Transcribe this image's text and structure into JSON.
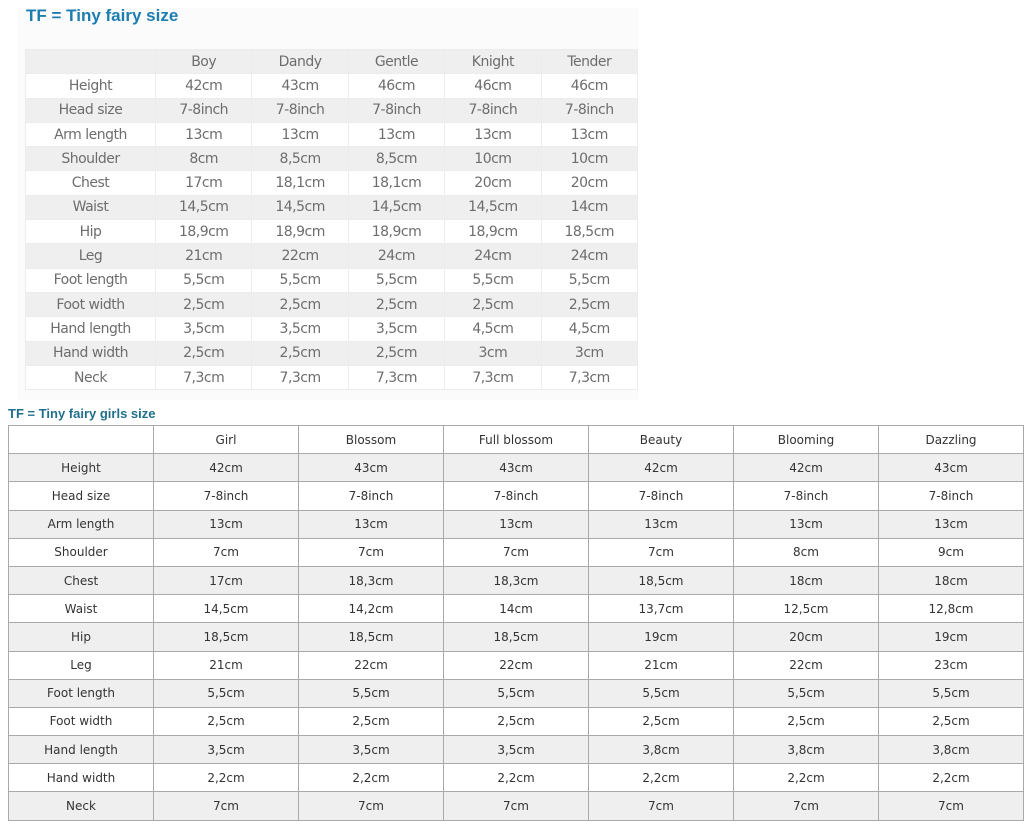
{
  "boys": {
    "title": "TF = Tiny fairy size",
    "columns": [
      "",
      "Boy",
      "Dandy",
      "Gentle",
      "Knight",
      "Tender"
    ],
    "rows": [
      [
        "Height",
        "42cm",
        "43cm",
        "46cm",
        "46cm",
        "46cm"
      ],
      [
        "Head size",
        "7-8inch",
        "7-8inch",
        "7-8inch",
        "7-8inch",
        "7-8inch"
      ],
      [
        "Arm length",
        "13cm",
        "13cm",
        "13cm",
        "13cm",
        "13cm"
      ],
      [
        "Shoulder",
        "8cm",
        "8,5cm",
        "8,5cm",
        "10cm",
        "10cm"
      ],
      [
        "Chest",
        "17cm",
        "18,1cm",
        "18,1cm",
        "20cm",
        "20cm"
      ],
      [
        "Waist",
        "14,5cm",
        "14,5cm",
        "14,5cm",
        "14,5cm",
        "14cm"
      ],
      [
        "Hip",
        "18,9cm",
        "18,9cm",
        "18,9cm",
        "18,9cm",
        "18,5cm"
      ],
      [
        "Leg",
        "21cm",
        "22cm",
        "24cm",
        "24cm",
        "24cm"
      ],
      [
        "Foot length",
        "5,5cm",
        "5,5cm",
        "5,5cm",
        "5,5cm",
        "5,5cm"
      ],
      [
        "Foot width",
        "2,5cm",
        "2,5cm",
        "2,5cm",
        "2,5cm",
        "2,5cm"
      ],
      [
        "Hand length",
        "3,5cm",
        "3,5cm",
        "3,5cm",
        "4,5cm",
        "4,5cm"
      ],
      [
        "Hand width",
        "2,5cm",
        "2,5cm",
        "2,5cm",
        "3cm",
        "3cm"
      ],
      [
        "Neck",
        "7,3cm",
        "7,3cm",
        "7,3cm",
        "7,3cm",
        "7,3cm"
      ]
    ]
  },
  "girls": {
    "title": "TF = Tiny fairy girls size",
    "columns": [
      "",
      "Girl",
      "Blossom",
      "Full blossom",
      "Beauty",
      "Blooming",
      "Dazzling"
    ],
    "rows": [
      [
        "Height",
        "42cm",
        "43cm",
        "43cm",
        "42cm",
        "42cm",
        "43cm"
      ],
      [
        "Head size",
        "7-8inch",
        "7-8inch",
        "7-8inch",
        "7-8inch",
        "7-8inch",
        "7-8inch"
      ],
      [
        "Arm length",
        "13cm",
        "13cm",
        "13cm",
        "13cm",
        "13cm",
        "13cm"
      ],
      [
        "Shoulder",
        "7cm",
        "7cm",
        "7cm",
        "7cm",
        "8cm",
        "9cm"
      ],
      [
        "Chest",
        "17cm",
        "18,3cm",
        "18,3cm",
        "18,5cm",
        "18cm",
        "18cm"
      ],
      [
        "Waist",
        "14,5cm",
        "14,2cm",
        "14cm",
        "13,7cm",
        "12,5cm",
        "12,8cm"
      ],
      [
        "Hip",
        "18,5cm",
        "18,5cm",
        "18,5cm",
        "19cm",
        "20cm",
        "19cm"
      ],
      [
        "Leg",
        "21cm",
        "22cm",
        "22cm",
        "21cm",
        "22cm",
        "23cm"
      ],
      [
        "Foot length",
        "5,5cm",
        "5,5cm",
        "5,5cm",
        "5,5cm",
        "5,5cm",
        "5,5cm"
      ],
      [
        "Foot width",
        "2,5cm",
        "2,5cm",
        "2,5cm",
        "2,5cm",
        "2,5cm",
        "2,5cm"
      ],
      [
        "Hand length",
        "3,5cm",
        "3,5cm",
        "3,5cm",
        "3,8cm",
        "3,8cm",
        "3,8cm"
      ],
      [
        "Hand width",
        "2,2cm",
        "2,2cm",
        "2,2cm",
        "2,2cm",
        "2,2cm",
        "2,2cm"
      ],
      [
        "Neck",
        "7cm",
        "7cm",
        "7cm",
        "7cm",
        "7cm",
        "7cm"
      ]
    ]
  }
}
